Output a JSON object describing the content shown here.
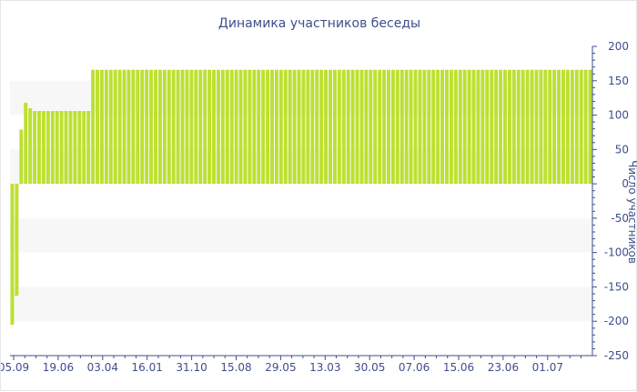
{
  "chart_data": {
    "type": "bar",
    "title": "Динамика участников беседы",
    "ylabel": "Число участников",
    "ylim": [
      -250,
      200
    ],
    "yticks": [
      200,
      150,
      100,
      50,
      0,
      -50,
      -100,
      -150,
      -200,
      -250
    ],
    "xticks": [
      "05.09",
      "19.06",
      "03.04",
      "16.01",
      "31.10",
      "15.08",
      "29.05",
      "13.03",
      "30.05",
      "07.06",
      "15.06",
      "23.06",
      "01.07"
    ],
    "bar_color": "#bde031",
    "axis_color": "#3d4f8a",
    "band_color": "#f7f7f7",
    "values": [
      -205,
      -163,
      79,
      118,
      110,
      106,
      106,
      106,
      106,
      106,
      106,
      106,
      106,
      106,
      106,
      106,
      106,
      106,
      166,
      166,
      166,
      166,
      166,
      166,
      166,
      166,
      166,
      166,
      166,
      166,
      166,
      166,
      166,
      166,
      166,
      166,
      166,
      166,
      166,
      166,
      166,
      166,
      166,
      166,
      166,
      166,
      166,
      166,
      166,
      166,
      166,
      166,
      166,
      166,
      166,
      166,
      166,
      166,
      166,
      166,
      166,
      166,
      166,
      166,
      166,
      166,
      166,
      166,
      166,
      166,
      166,
      166,
      166,
      166,
      166,
      166,
      166,
      166,
      166,
      166,
      166,
      166,
      166,
      166,
      166,
      166,
      166,
      166,
      166,
      166,
      166,
      166,
      166,
      166,
      166,
      166,
      166,
      166,
      166,
      166,
      166,
      166,
      166,
      166,
      166,
      166,
      166,
      166,
      166,
      166,
      166,
      166,
      166,
      166,
      166,
      166,
      166,
      166,
      166,
      166,
      166,
      166,
      166,
      166,
      166,
      166,
      166,
      166,
      166,
      166
    ]
  }
}
